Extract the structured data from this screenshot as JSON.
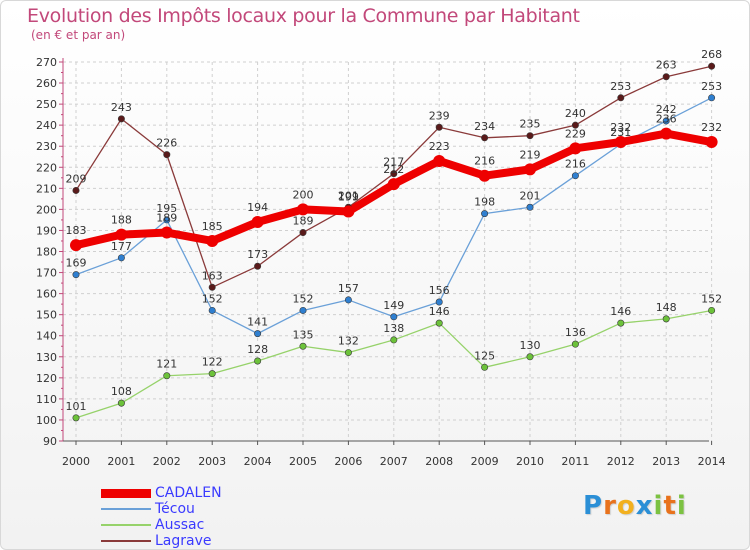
{
  "title": "Evolution des Impôts locaux pour la Commune par Habitant",
  "subtitle": "(en € et par an)",
  "logo": {
    "text": "Proxiti",
    "letters": [
      {
        "ch": "P",
        "color": "#2b8fd6"
      },
      {
        "ch": "r",
        "color": "#e8721c"
      },
      {
        "ch": "o",
        "color": "#f2b01e"
      },
      {
        "ch": "x",
        "color": "#2b8fd6"
      },
      {
        "ch": "i",
        "color": "#7cc242"
      },
      {
        "ch": "t",
        "color": "#e8721c"
      },
      {
        "ch": "i",
        "color": "#7cc242"
      }
    ]
  },
  "chart_data": {
    "type": "line",
    "title": "Evolution des Impôts locaux pour la Commune par Habitant",
    "ylabel": "(en € et par an)",
    "xlabel": "",
    "categories": [
      "2000",
      "2001",
      "2002",
      "2003",
      "2004",
      "2005",
      "2006",
      "2007",
      "2008",
      "2009",
      "2010",
      "2011",
      "2012",
      "2013",
      "2014"
    ],
    "ylim": [
      90,
      270
    ],
    "yticks": [
      90,
      100,
      110,
      120,
      130,
      140,
      150,
      160,
      170,
      180,
      190,
      200,
      210,
      220,
      230,
      240,
      250,
      260,
      270
    ],
    "grid": true,
    "legend_position": "bottom-left",
    "series": [
      {
        "name": "CADALEN",
        "color": "#ee0000",
        "marker": "#ee0000",
        "values": [
          183,
          188,
          189,
          185,
          194,
          200,
          199,
          212,
          223,
          216,
          219,
          229,
          232,
          236,
          232
        ],
        "labels": [
          "183",
          "188",
          "189",
          "185",
          "194",
          "200",
          "199",
          "212",
          "223",
          "216",
          "219",
          "229",
          "232",
          "236",
          "232"
        ]
      },
      {
        "name": "Técou",
        "color": "#6aa0d8",
        "marker": "#2f7fd0",
        "values": [
          169,
          177,
          195,
          152,
          141,
          152,
          157,
          149,
          156,
          198,
          201,
          216,
          231,
          242,
          253
        ],
        "labels": [
          "169",
          "177",
          "195",
          "152",
          "141",
          "152",
          "157",
          "149",
          "156",
          "198",
          "201",
          "216",
          "231",
          "242",
          "253"
        ]
      },
      {
        "name": "Aussac",
        "color": "#96d26a",
        "marker": "#6cc23a",
        "values": [
          101,
          108,
          121,
          122,
          128,
          135,
          132,
          138,
          146,
          125,
          130,
          136,
          146,
          148,
          152
        ],
        "labels": [
          "101",
          "108",
          "121",
          "122",
          "128",
          "135",
          "132",
          "138",
          "146",
          "125",
          "130",
          "136",
          "146",
          "148",
          "152"
        ]
      },
      {
        "name": "Lagrave",
        "color": "#8a3a3a",
        "marker": "#5a1a1a",
        "values": [
          209,
          243,
          226,
          163,
          173,
          189,
          201,
          217,
          239,
          234,
          235,
          240,
          253,
          263,
          268
        ],
        "labels": [
          "209",
          "243",
          "226",
          "163",
          "173",
          "189",
          "201",
          "217",
          "239",
          "234",
          "235",
          "240",
          "253",
          "263",
          "268"
        ]
      }
    ]
  }
}
